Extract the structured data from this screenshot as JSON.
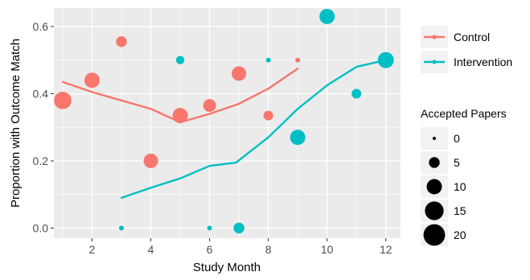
{
  "chart_data": {
    "type": "scatter",
    "xlabel": "Study Month",
    "ylabel": "Proportion with Outcome Match",
    "xlim": [
      0.7,
      12.5
    ],
    "ylim": [
      -0.03,
      0.655
    ],
    "xticks": [
      2,
      4,
      6,
      8,
      10,
      12
    ],
    "yticks": [
      0.0,
      0.2,
      0.4,
      0.6
    ],
    "ytick_labels": [
      "0.0",
      "0.2",
      "0.4",
      "0.6"
    ],
    "grid": true,
    "legend_placement": "right",
    "series": [
      {
        "name": "Control",
        "color": "#F8766D",
        "points": [
          {
            "x": 1,
            "y": 0.38,
            "size": 13
          },
          {
            "x": 2,
            "y": 0.44,
            "size": 10
          },
          {
            "x": 3,
            "y": 0.555,
            "size": 5
          },
          {
            "x": 4,
            "y": 0.2,
            "size": 9
          },
          {
            "x": 5,
            "y": 0.335,
            "size": 10
          },
          {
            "x": 6,
            "y": 0.365,
            "size": 7
          },
          {
            "x": 7,
            "y": 0.46,
            "size": 9
          },
          {
            "x": 8,
            "y": 0.335,
            "size": 4
          },
          {
            "x": 9,
            "y": 0.5,
            "size": 1
          }
        ],
        "smooth": [
          [
            1,
            0.435
          ],
          [
            2,
            0.405
          ],
          [
            3,
            0.38
          ],
          [
            4,
            0.355
          ],
          [
            5,
            0.315
          ],
          [
            6,
            0.34
          ],
          [
            7,
            0.37
          ],
          [
            8,
            0.415
          ],
          [
            9,
            0.475
          ]
        ]
      },
      {
        "name": "Intervention",
        "color": "#00BFC4",
        "points": [
          {
            "x": 3,
            "y": 0.0,
            "size": 1
          },
          {
            "x": 5,
            "y": 0.5,
            "size": 3
          },
          {
            "x": 6,
            "y": 0.0,
            "size": 1
          },
          {
            "x": 7,
            "y": 0.0,
            "size": 5
          },
          {
            "x": 8,
            "y": 0.5,
            "size": 1
          },
          {
            "x": 9,
            "y": 0.27,
            "size": 10
          },
          {
            "x": 10,
            "y": 0.63,
            "size": 10
          },
          {
            "x": 11,
            "y": 0.4,
            "size": 4
          },
          {
            "x": 12,
            "y": 0.5,
            "size": 11
          }
        ],
        "smooth": [
          [
            3,
            0.09
          ],
          [
            4,
            0.12
          ],
          [
            5,
            0.148
          ],
          [
            6,
            0.185
          ],
          [
            6.9,
            0.195
          ],
          [
            8,
            0.27
          ],
          [
            9,
            0.355
          ],
          [
            10,
            0.425
          ],
          [
            11,
            0.48
          ],
          [
            12,
            0.5
          ]
        ]
      }
    ],
    "size_legend": {
      "title": "Accepted Papers",
      "entries": [
        {
          "label": "0",
          "value": 0
        },
        {
          "label": "5",
          "value": 5
        },
        {
          "label": "10",
          "value": 10
        },
        {
          "label": "15",
          "value": 15
        },
        {
          "label": "20",
          "value": 20
        }
      ]
    }
  }
}
